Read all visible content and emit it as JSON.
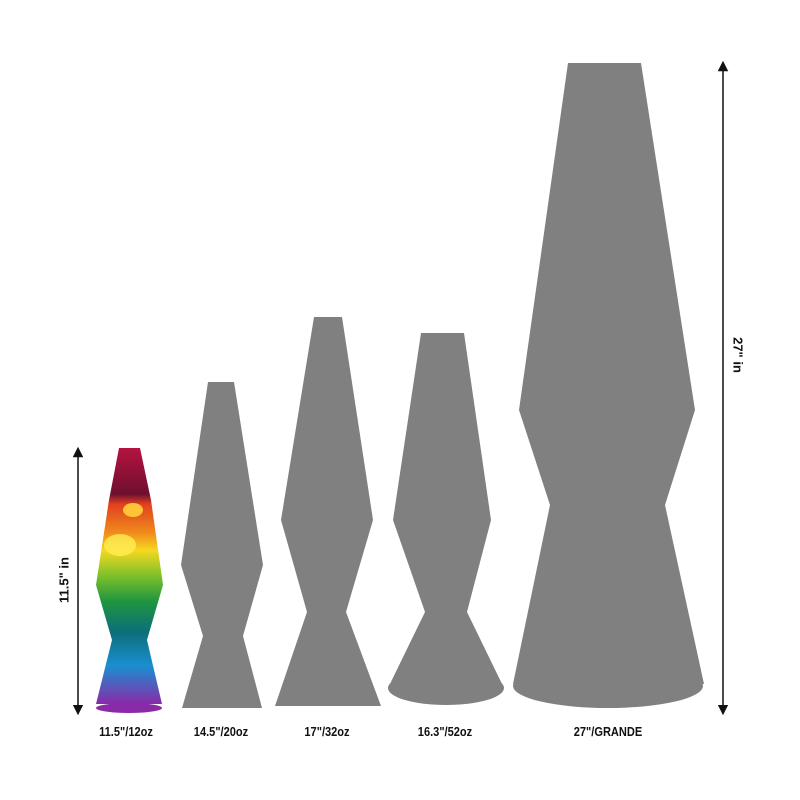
{
  "lamp_color": "#808080",
  "lamps": [
    {
      "label": "11.5\"/12oz",
      "style": "rainbow"
    },
    {
      "label": "14.5\"/20oz",
      "style": "silhouette"
    },
    {
      "label": "17\"/32oz",
      "style": "silhouette"
    },
    {
      "label": "16.3\"/52oz",
      "style": "silhouette"
    },
    {
      "label": "27\"/GRANDE",
      "style": "silhouette"
    }
  ],
  "dimensions": {
    "left_height": "11.5\" in",
    "right_height": "27\" in"
  }
}
